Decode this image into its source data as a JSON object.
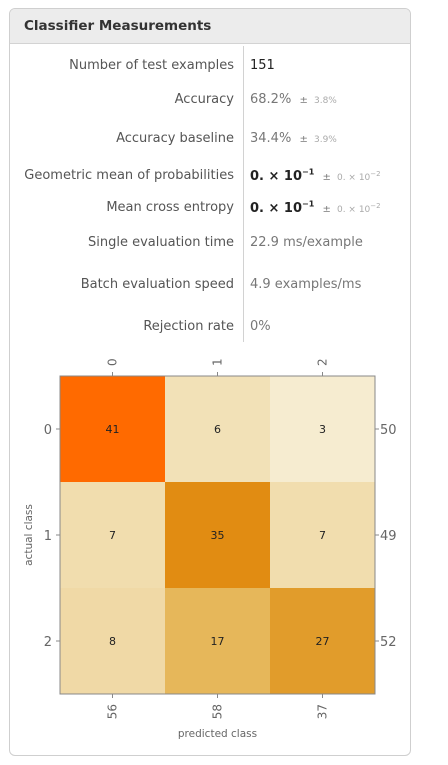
{
  "panel": {
    "title": "Classifier Measurements"
  },
  "measurements": {
    "test_examples": {
      "label": "Number of test examples",
      "value": "151"
    },
    "accuracy": {
      "label": "Accuracy",
      "value": "68.2%",
      "pm": "±",
      "uncertainty": "3.8%"
    },
    "accuracy_baseline": {
      "label": "Accuracy baseline",
      "value": "34.4%",
      "pm": "±",
      "uncertainty": "3.9%"
    },
    "geo_mean": {
      "label": "Geometric mean of probabilities",
      "value_base": "0. × 10",
      "value_exp": "−1",
      "pm": "±",
      "unc_base": "0. × 10",
      "unc_exp": "−2"
    },
    "cross_entropy": {
      "label": "Mean cross entropy",
      "value_base": "0. × 10",
      "value_exp": "−1",
      "pm": "±",
      "unc_base": "0. × 10",
      "unc_exp": "−2"
    },
    "eval_time": {
      "label": "Single evaluation time",
      "value": "22.9 ms/example"
    },
    "batch_speed": {
      "label": "Batch evaluation speed",
      "value": "4.9 examples/ms"
    },
    "rejection_rate": {
      "label": "Rejection rate",
      "value": "0%"
    }
  },
  "chart_data": {
    "type": "heatmap",
    "title": "",
    "xlabel": "predicted class",
    "ylabel": "actual class",
    "classes": [
      "0",
      "1",
      "2"
    ],
    "matrix": [
      [
        41,
        6,
        3
      ],
      [
        7,
        35,
        7
      ],
      [
        8,
        17,
        27
      ]
    ],
    "row_totals": [
      "50",
      "49",
      "52"
    ],
    "column_totals": [
      "56",
      "58",
      "37"
    ],
    "colors": {
      "high": "#ff6a00",
      "mid": "#e07f00",
      "low": "#f6ecd0"
    }
  }
}
